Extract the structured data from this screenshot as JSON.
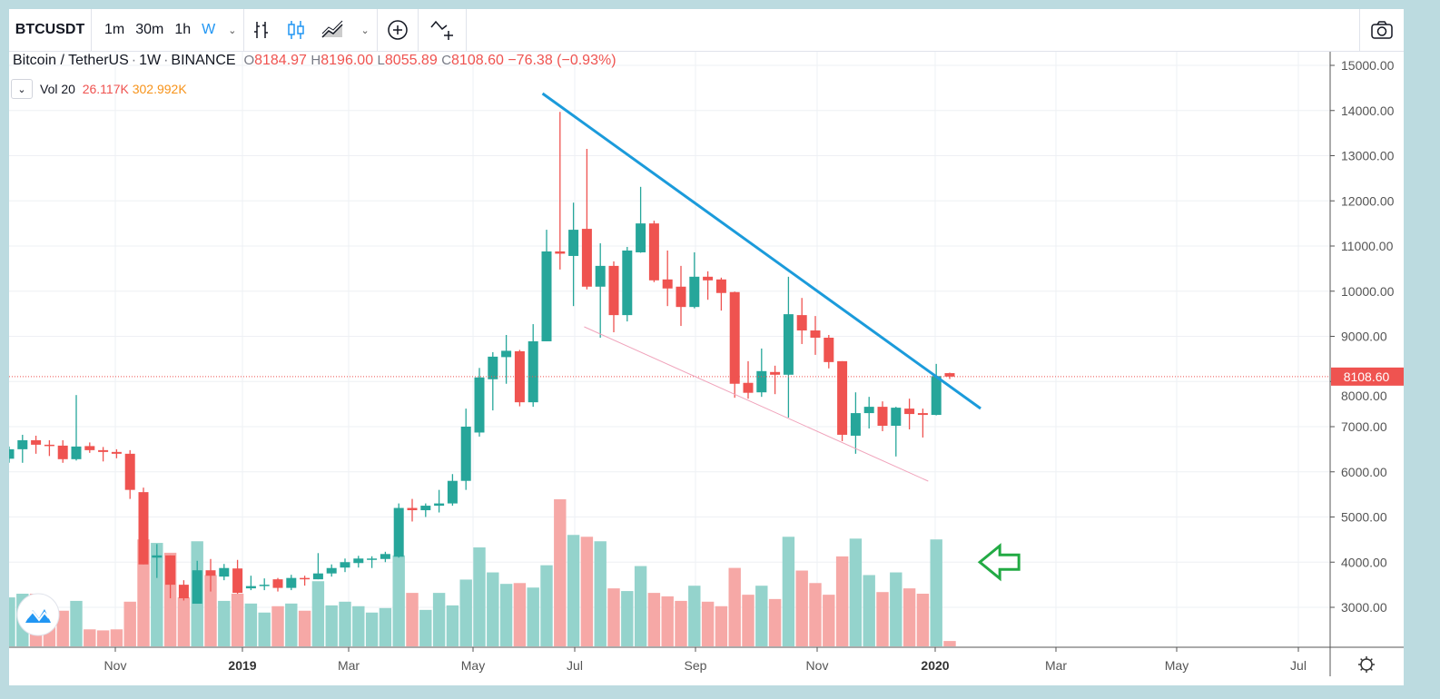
{
  "toolbar": {
    "symbol": "BTCUSDT",
    "intervals": [
      "1m",
      "30m",
      "1h",
      "W"
    ],
    "active_interval": "W"
  },
  "legend": {
    "title": "Bitcoin / TetherUS",
    "sep": "·",
    "interval": "1W",
    "exchange": "BINANCE",
    "o_label": "O",
    "o": "8184.97",
    "h_label": "H",
    "h": "8196.00",
    "l_label": "L",
    "l": "8055.89",
    "c_label": "C",
    "c": "8108.60",
    "change": "−76.38 (−0.93%)"
  },
  "volume_legend": {
    "label": "Vol 20",
    "value": "26.117K",
    "ma": "302.992K"
  },
  "colors": {
    "up": "#26a69a",
    "down": "#ef5350",
    "up_vol": "#94d3cc",
    "down_vol": "#f6a8a6",
    "trendline": "#1b9bdb",
    "support": "#f0a3bb",
    "arrow": "#22aa44",
    "interval_active": "#2196f3"
  },
  "chart_data": {
    "type": "candlestick",
    "symbol": "BTCUSDT",
    "interval": "1W",
    "x_tick_labels": [
      "Nov",
      "2019",
      "Mar",
      "May",
      "Jul",
      "Sep",
      "Nov",
      "2020",
      "Mar",
      "May",
      "Jul"
    ],
    "y_tick_labels": [
      "3000.00",
      "4000.00",
      "5000.00",
      "6000.00",
      "7000.00",
      "8000.00",
      "9000.00",
      "10000.00",
      "11000.00",
      "12000.00",
      "13000.00",
      "14000.00",
      "15000.00"
    ],
    "ylim": [
      2300,
      15300
    ],
    "last_price": 8108.6,
    "last_price_label": "8108.60",
    "ohlc": [
      [
        6290,
        6560,
        6200,
        6500
      ],
      [
        6500,
        6820,
        6200,
        6700
      ],
      [
        6700,
        6800,
        6400,
        6600
      ],
      [
        6600,
        6700,
        6350,
        6580
      ],
      [
        6580,
        6700,
        6200,
        6280
      ],
      [
        6280,
        7700,
        6250,
        6560
      ],
      [
        6570,
        6650,
        6420,
        6480
      ],
      [
        6480,
        6550,
        6230,
        6440
      ],
      [
        6440,
        6500,
        6300,
        6400
      ],
      [
        6400,
        6480,
        5400,
        5600
      ],
      [
        5550,
        5650,
        3950,
        3950
      ],
      [
        4100,
        4400,
        3650,
        4150
      ],
      [
        4150,
        4150,
        3200,
        3500
      ],
      [
        3500,
        3600,
        3150,
        3200
      ],
      [
        3080,
        4030,
        3080,
        3820
      ],
      [
        3820,
        4070,
        3350,
        3700
      ],
      [
        3680,
        3960,
        3600,
        3870
      ],
      [
        3860,
        4050,
        3300,
        3320
      ],
      [
        3420,
        3700,
        3380,
        3470
      ],
      [
        3480,
        3640,
        3380,
        3500
      ],
      [
        3620,
        3650,
        3350,
        3430
      ],
      [
        3430,
        3720,
        3380,
        3650
      ],
      [
        3650,
        3700,
        3480,
        3620
      ],
      [
        3620,
        4200,
        3620,
        3750
      ],
      [
        3750,
        3950,
        3680,
        3870
      ],
      [
        3880,
        4080,
        3780,
        4000
      ],
      [
        3980,
        4140,
        3880,
        4080
      ],
      [
        4060,
        4130,
        3870,
        4080
      ],
      [
        4070,
        4230,
        4000,
        4180
      ],
      [
        4120,
        5300,
        4100,
        5200
      ],
      [
        5200,
        5400,
        4900,
        5150
      ],
      [
        5150,
        5300,
        5000,
        5250
      ],
      [
        5250,
        5600,
        5100,
        5300
      ],
      [
        5300,
        5950,
        5250,
        5800
      ],
      [
        5800,
        7400,
        5600,
        7000
      ],
      [
        6870,
        8300,
        6780,
        8090
      ],
      [
        8050,
        8650,
        7360,
        8550
      ],
      [
        8540,
        9030,
        7950,
        8680
      ],
      [
        8670,
        8700,
        7450,
        7540
      ],
      [
        7540,
        9270,
        7440,
        8890
      ],
      [
        8890,
        11360,
        8890,
        10880
      ],
      [
        10880,
        13970,
        10480,
        10830
      ],
      [
        10780,
        11960,
        9670,
        11360
      ],
      [
        11380,
        13150,
        10040,
        10100
      ],
      [
        10100,
        11060,
        8970,
        10560
      ],
      [
        10560,
        10660,
        9090,
        9470
      ],
      [
        9470,
        10980,
        9330,
        10900
      ],
      [
        10860,
        12310,
        10850,
        11500
      ],
      [
        11500,
        11560,
        10200,
        10240
      ],
      [
        10260,
        10900,
        9670,
        10060
      ],
      [
        10100,
        10560,
        9230,
        9650
      ],
      [
        9650,
        10860,
        9620,
        10320
      ],
      [
        10320,
        10440,
        9810,
        10240
      ],
      [
        10260,
        10300,
        9570,
        9960
      ],
      [
        9980,
        9990,
        7640,
        7950
      ],
      [
        7970,
        8450,
        7620,
        7750
      ],
      [
        7760,
        8730,
        7660,
        8230
      ],
      [
        8210,
        8350,
        7720,
        8150
      ],
      [
        8150,
        10320,
        7200,
        9490
      ],
      [
        9470,
        9850,
        8830,
        9130
      ],
      [
        9130,
        9450,
        8590,
        8970
      ],
      [
        8970,
        9030,
        8290,
        8430
      ],
      [
        8450,
        8450,
        6680,
        6820
      ],
      [
        6800,
        7760,
        6400,
        7300
      ],
      [
        7300,
        7660,
        6960,
        7440
      ],
      [
        7440,
        7560,
        6900,
        7020
      ],
      [
        7020,
        7440,
        6340,
        7420
      ],
      [
        7400,
        7620,
        6940,
        7280
      ],
      [
        7300,
        7400,
        6760,
        7260
      ],
      [
        7260,
        8390,
        7250,
        8120
      ],
      [
        8184.97,
        8196.0,
        8055.89,
        8108.6
      ]
    ],
    "volume_k": [
      239,
      257,
      257,
      174,
      174,
      222,
      83,
      78,
      83,
      218,
      522,
      505,
      457,
      239,
      513,
      348,
      222,
      257,
      209,
      165,
      196,
      209,
      174,
      318,
      200,
      218,
      196,
      165,
      187,
      444,
      261,
      178,
      261,
      200,
      326,
      483,
      361,
      305,
      309,
      287,
      396,
      718,
      544,
      535,
      513,
      283,
      270,
      392,
      261,
      244,
      222,
      296,
      218,
      196,
      383,
      252,
      296,
      231,
      535,
      370,
      309,
      252,
      439,
      526,
      348,
      265,
      361,
      283,
      257,
      522,
      26.117
    ],
    "drawings": {
      "resistance_line": {
        "from": {
          "bar": 39.7,
          "price": 14377
        },
        "to": {
          "bar": 72.3,
          "price": 7402
        }
      },
      "support_line": {
        "from": {
          "bar": 42.8,
          "price": 9211
        },
        "to": {
          "bar": 68.4,
          "price": 5794
        }
      },
      "arrow_annotation": {
        "bar": 71.7,
        "price_volume_pane": 4000,
        "direction": "left"
      }
    }
  }
}
